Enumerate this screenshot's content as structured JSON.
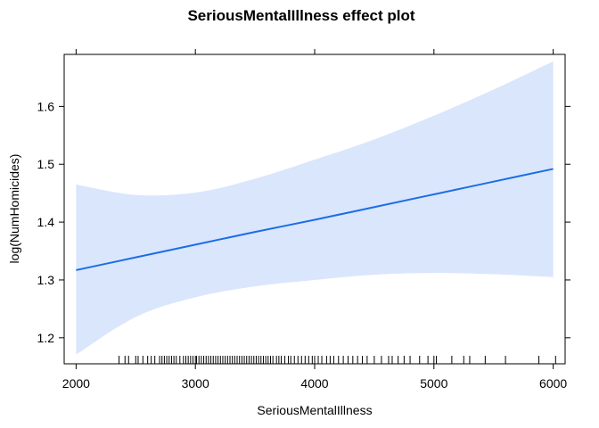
{
  "chart_data": {
    "type": "line",
    "title": "SeriousMentalIllness effect plot",
    "xlabel": "SeriousMentalIllness",
    "ylabel": "log(NumHomicides)",
    "xlim": [
      1900,
      6100
    ],
    "ylim": [
      1.155,
      1.69
    ],
    "xticks": [
      2000,
      3000,
      4000,
      5000,
      6000
    ],
    "xtick_labels": [
      "2000",
      "3000",
      "4000",
      "5000",
      "6000"
    ],
    "yticks": [
      1.2,
      1.3,
      1.4,
      1.5,
      1.6
    ],
    "ytick_labels": [
      "1.2",
      "1.3",
      "1.4",
      "1.5",
      "1.6"
    ],
    "grid": false,
    "series": [
      {
        "x": [
          2000,
          2500,
          3000,
          3500,
          4000,
          4500,
          5000,
          5500,
          6000
        ],
        "fit": [
          1.317,
          1.339,
          1.361,
          1.383,
          1.404,
          1.426,
          1.448,
          1.47,
          1.492
        ],
        "lower": [
          1.171,
          1.236,
          1.27,
          1.289,
          1.3,
          1.309,
          1.312,
          1.31,
          1.305
        ],
        "upper": [
          1.465,
          1.447,
          1.451,
          1.475,
          1.508,
          1.543,
          1.584,
          1.629,
          1.678
        ],
        "color": "#1a6ee6",
        "band_color": "#dae6fc"
      }
    ],
    "rug": [
      2360,
      2410,
      2440,
      2500,
      2520,
      2560,
      2600,
      2630,
      2660,
      2700,
      2720,
      2740,
      2760,
      2780,
      2800,
      2820,
      2840,
      2870,
      2900,
      2920,
      2940,
      2960,
      2980,
      3000,
      3010,
      3030,
      3050,
      3070,
      3090,
      3110,
      3130,
      3150,
      3170,
      3190,
      3210,
      3230,
      3250,
      3270,
      3290,
      3310,
      3330,
      3350,
      3370,
      3390,
      3410,
      3430,
      3450,
      3470,
      3490,
      3510,
      3530,
      3550,
      3570,
      3590,
      3610,
      3630,
      3650,
      3680,
      3700,
      3720,
      3750,
      3780,
      3800,
      3830,
      3860,
      3890,
      3920,
      3950,
      3980,
      4000,
      4030,
      4060,
      4100,
      4130,
      4160,
      4200,
      4240,
      4280,
      4320,
      4360,
      4400,
      4440,
      4500,
      4560,
      4620,
      4650,
      4700,
      4750,
      4800,
      4880,
      4950,
      5000,
      5020,
      5150,
      5250,
      5300,
      5430,
      5600,
      5880,
      6020
    ]
  }
}
